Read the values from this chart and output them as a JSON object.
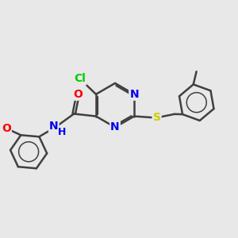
{
  "background_color": "#e8e8e8",
  "bond_color": "#404040",
  "bond_width": 1.8,
  "atom_colors": {
    "Cl": "#00cc00",
    "N": "#0000ee",
    "O": "#ff0000",
    "S": "#cccc00",
    "C": "#000000",
    "H": "#0000ee"
  },
  "font_size": 10,
  "figsize": [
    3.0,
    3.0
  ],
  "dpi": 100
}
